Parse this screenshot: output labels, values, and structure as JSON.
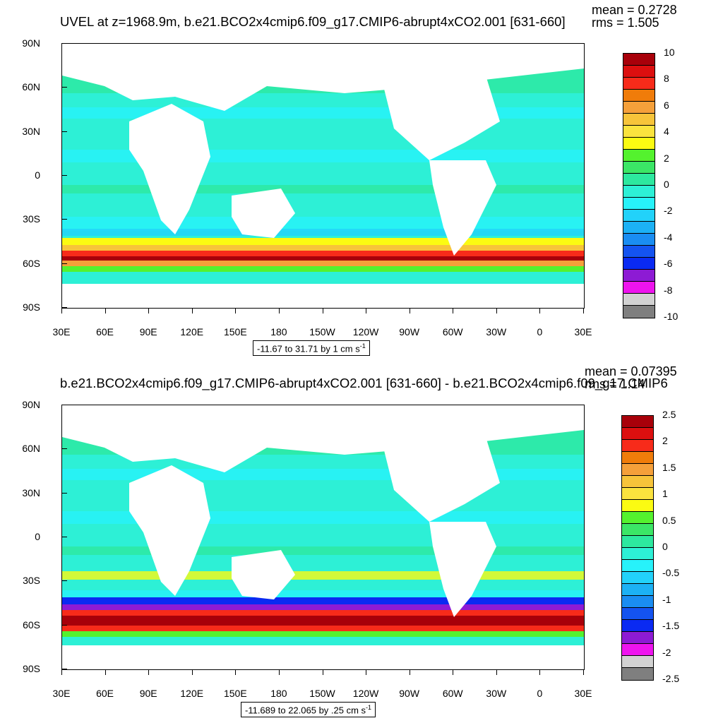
{
  "chart_data": [
    {
      "type": "heatmap",
      "title": "UVEL at z=1968.9m, b.e21.BCO2x4cmip6.f09_g17.CMIP6-abrupt4xCO2.001 [631-660]",
      "mean_text": "mean = 0.2728",
      "rms_text": "rms = 1.505",
      "range_text": "-11.67 to 31.71 by 1 cm s",
      "range_unit_exp": "-1",
      "lat_ticks": [
        "90N",
        "60N",
        "30N",
        "0",
        "30S",
        "60S",
        "90S"
      ],
      "lon_ticks": [
        "30E",
        "60E",
        "90E",
        "120E",
        "150E",
        "180",
        "150W",
        "120W",
        "90W",
        "60W",
        "30W",
        "0",
        "30E"
      ],
      "colorbar_labels": [
        "10",
        "8",
        "6",
        "4",
        "2",
        "0",
        "-2",
        "-4",
        "-6",
        "-8",
        "-10"
      ],
      "colorbar_colors": [
        "#a8000a",
        "#dc0f0f",
        "#f72b1a",
        "#f07c0a",
        "#f5a03a",
        "#f7c43a",
        "#fbe33e",
        "#fbfb12",
        "#54f22e",
        "#3be666",
        "#2de89f",
        "#2df0d6",
        "#27f2fa",
        "#22d2fa",
        "#1cb1f5",
        "#1a8df2",
        "#1453f0",
        "#0a2af2",
        "#8d1bd4",
        "#ee14ee",
        "#d2d2d2",
        "#7f7f7f"
      ]
    },
    {
      "type": "heatmap",
      "title": "b.e21.BCO2x4cmip6.f09_g17.CMIP6-abrupt4xCO2.001 [631-660] - b.e21.BCO2x4cmip6.f09_g17.CMIP6",
      "mean_text": "mean = 0.07395",
      "rms_text": "rms = 1.14",
      "range_text": "-11.689 to 22.065 by .25 cm s",
      "range_unit_exp": "-1",
      "lat_ticks": [
        "90N",
        "60N",
        "30N",
        "0",
        "30S",
        "60S",
        "90S"
      ],
      "lon_ticks": [
        "30E",
        "60E",
        "90E",
        "120E",
        "150E",
        "180",
        "150W",
        "120W",
        "90W",
        "60W",
        "30W",
        "0",
        "30E"
      ],
      "colorbar_labels": [
        "2.5",
        "2",
        "1.5",
        "1",
        "0.5",
        "0",
        "-0.5",
        "-1",
        "-1.5",
        "-2",
        "-2.5"
      ],
      "colorbar_colors": [
        "#a8000a",
        "#dc0f0f",
        "#f72b1a",
        "#f07c0a",
        "#f5a03a",
        "#f7c43a",
        "#fbe33e",
        "#fbfb12",
        "#54f22e",
        "#3be666",
        "#2de89f",
        "#2df0d6",
        "#27f2fa",
        "#22d2fa",
        "#1cb1f5",
        "#1a8df2",
        "#1453f0",
        "#0a2af2",
        "#8d1bd4",
        "#ee14ee",
        "#d2d2d2",
        "#7f7f7f"
      ]
    }
  ]
}
